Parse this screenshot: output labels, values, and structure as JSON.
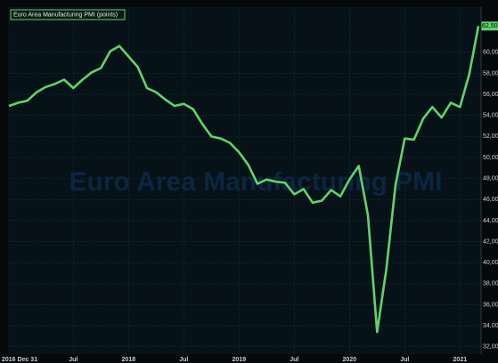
{
  "chart_data": {
    "type": "line",
    "watermark": "Euro Area Manufacturing PMI",
    "x": [
      "2016-12",
      "2017-01",
      "2017-02",
      "2017-03",
      "2017-04",
      "2017-05",
      "2017-06",
      "2017-07",
      "2017-08",
      "2017-09",
      "2017-10",
      "2017-11",
      "2017-12",
      "2018-01",
      "2018-02",
      "2018-03",
      "2018-04",
      "2018-05",
      "2018-06",
      "2018-07",
      "2018-08",
      "2018-09",
      "2018-10",
      "2018-11",
      "2018-12",
      "2019-01",
      "2019-02",
      "2019-03",
      "2019-04",
      "2019-05",
      "2019-06",
      "2019-07",
      "2019-08",
      "2019-09",
      "2019-10",
      "2019-11",
      "2019-12",
      "2020-01",
      "2020-02",
      "2020-03",
      "2020-04",
      "2020-05",
      "2020-06",
      "2020-07",
      "2020-08",
      "2020-09",
      "2020-10",
      "2020-11",
      "2020-12",
      "2021-01",
      "2021-02",
      "2021-03"
    ],
    "series": [
      {
        "name": "Euro Area Manufacturing PMI (points)",
        "color": "#5fd46a",
        "values": [
          54.9,
          55.2,
          55.4,
          56.2,
          56.7,
          57.0,
          57.4,
          56.6,
          57.4,
          58.1,
          58.5,
          60.1,
          60.6,
          59.6,
          58.6,
          56.6,
          56.2,
          55.5,
          54.9,
          55.1,
          54.6,
          53.2,
          52.0,
          51.8,
          51.4,
          50.5,
          49.3,
          47.5,
          47.9,
          47.7,
          47.6,
          46.5,
          47.0,
          45.7,
          45.9,
          46.9,
          46.3,
          47.9,
          49.2,
          44.5,
          33.4,
          39.4,
          47.4,
          51.8,
          51.7,
          53.7,
          54.8,
          53.8,
          55.2,
          54.8,
          57.9,
          62.5
        ],
        "last_value_label": "62,50"
      }
    ],
    "xticks": [
      {
        "value": "2016-12",
        "label": "2016 Dec 31"
      },
      {
        "value": "2017-07",
        "label": "Jul"
      },
      {
        "value": "2018-01",
        "label": "2018"
      },
      {
        "value": "2018-07",
        "label": "Jul"
      },
      {
        "value": "2019-01",
        "label": "2019"
      },
      {
        "value": "2019-07",
        "label": "Jul"
      },
      {
        "value": "2020-01",
        "label": "2020"
      },
      {
        "value": "2020-07",
        "label": "Jul"
      },
      {
        "value": "2021-01",
        "label": "2021"
      }
    ],
    "ylim": [
      31.3,
      64.3
    ],
    "yticks": [
      {
        "value": 32,
        "label": "32,00"
      },
      {
        "value": 34,
        "label": "34,00"
      },
      {
        "value": 36,
        "label": "36,00"
      },
      {
        "value": 38,
        "label": "38,00"
      },
      {
        "value": 40,
        "label": "40,00"
      },
      {
        "value": 42,
        "label": "42,00"
      },
      {
        "value": 44,
        "label": "44,00"
      },
      {
        "value": 46,
        "label": "46,00"
      },
      {
        "value": 48,
        "label": "48,00"
      },
      {
        "value": 50,
        "label": "50,00"
      },
      {
        "value": 52,
        "label": "52,00"
      },
      {
        "value": 54,
        "label": "54,00"
      },
      {
        "value": 56,
        "label": "56,00"
      },
      {
        "value": 58,
        "label": "58,00"
      },
      {
        "value": 60,
        "label": "60,00"
      }
    ],
    "grid": true,
    "legend": "top-left"
  }
}
